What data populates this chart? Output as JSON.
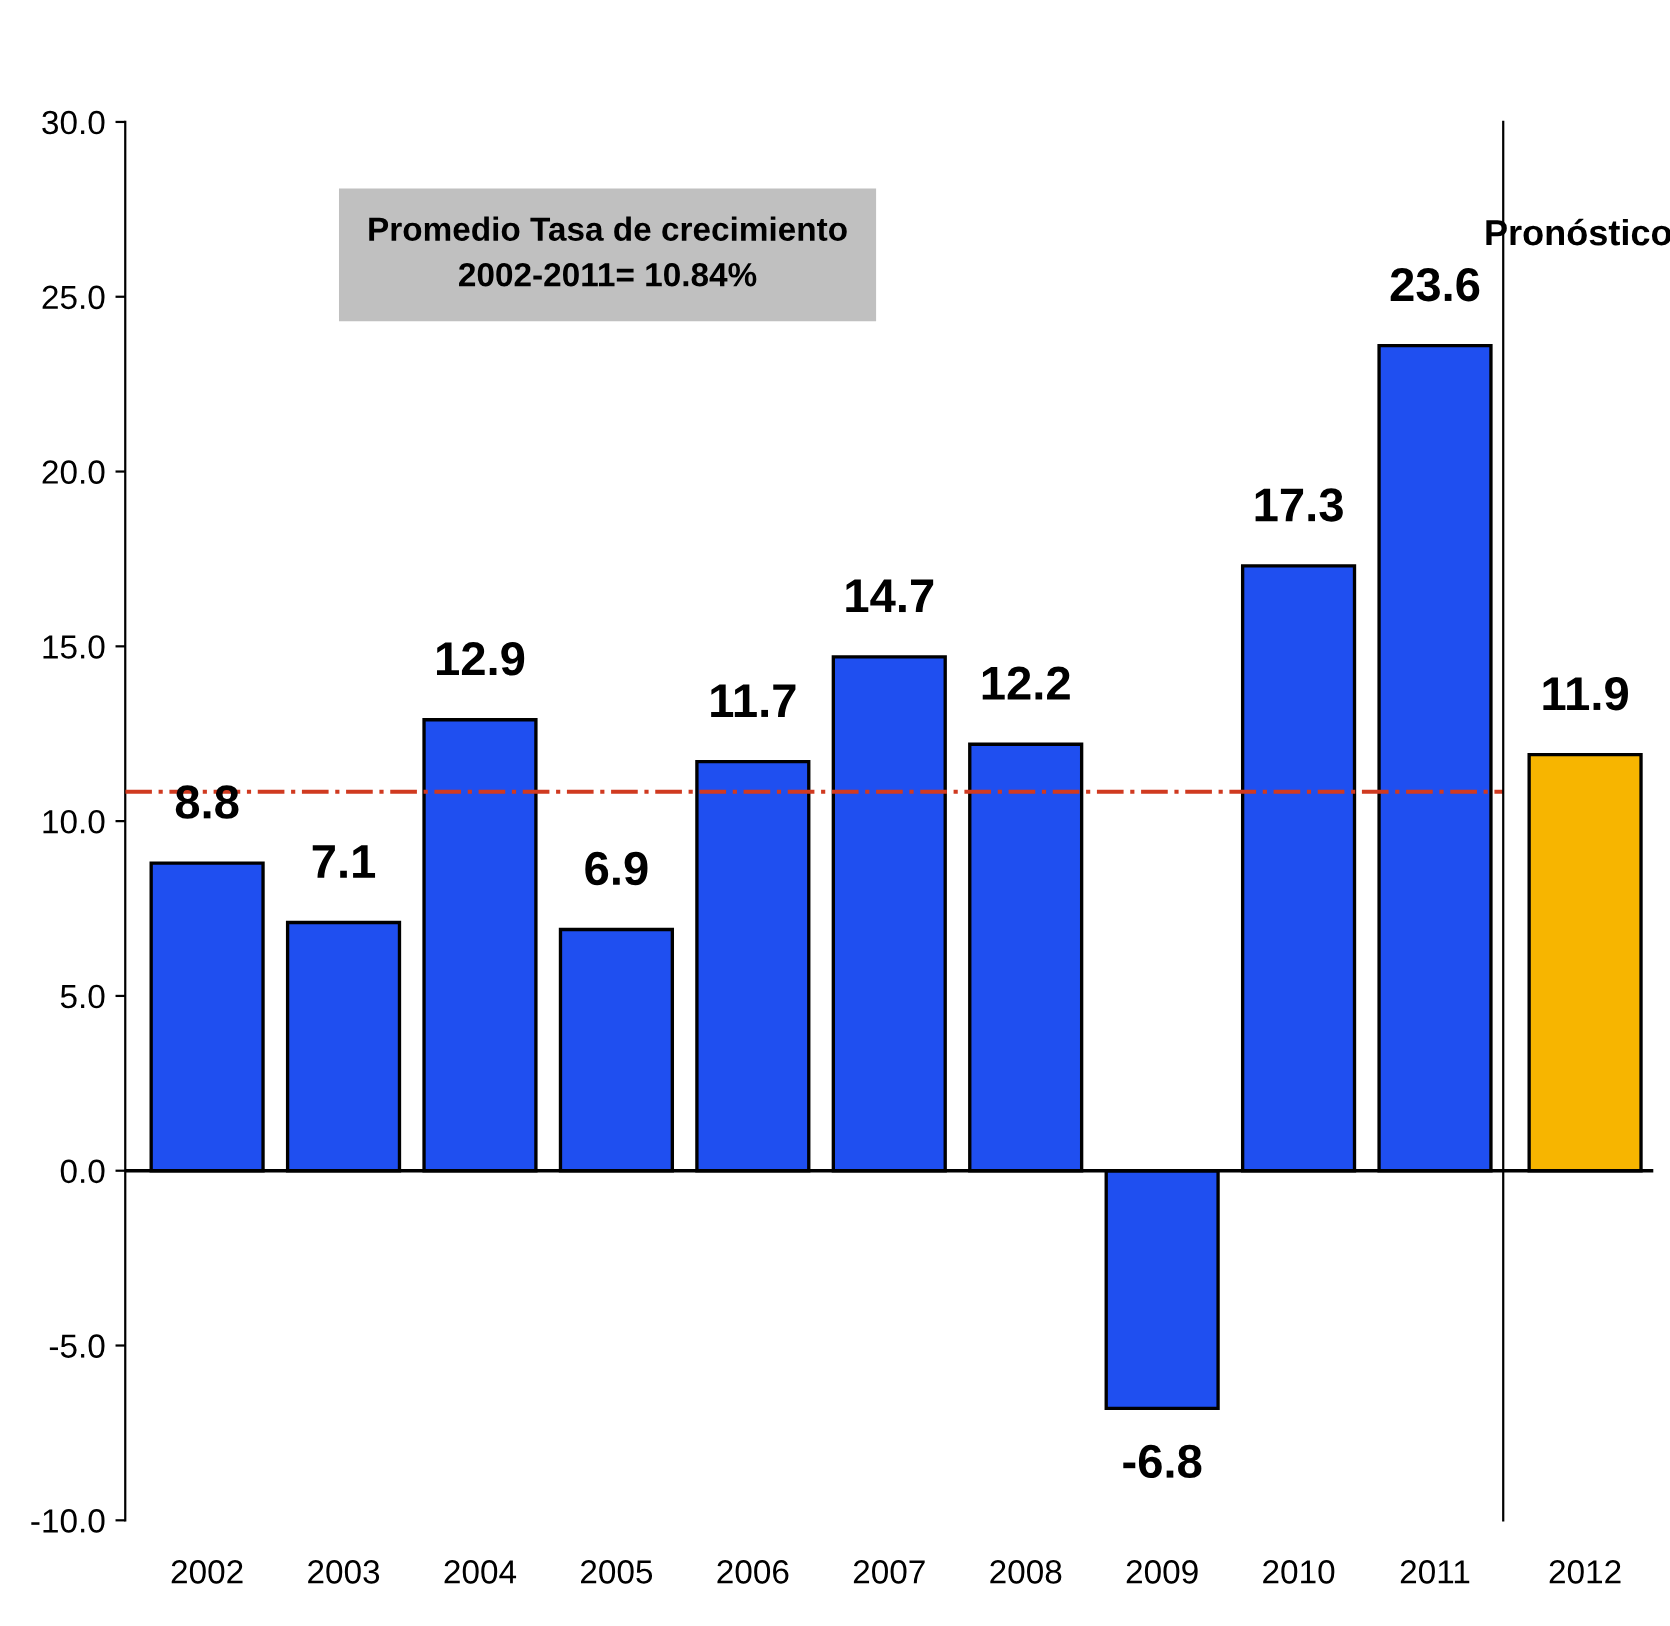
{
  "chart_data": [
    {
      "type": "bar",
      "categories": [
        "2002",
        "2003",
        "2004",
        "2005",
        "2006",
        "2007",
        "2008",
        "2009",
        "2010",
        "2011"
      ],
      "values": [
        8.8,
        7.1,
        12.9,
        6.9,
        11.7,
        14.7,
        12.2,
        -6.8,
        17.3,
        23.6
      ],
      "color": "#1f4ff0",
      "data_labels": true,
      "ylim": [
        -10,
        30
      ],
      "yticks": [
        {
          "value": -10,
          "label": "-10.0"
        },
        {
          "value": -5,
          "label": "-5.0"
        },
        {
          "value": 0,
          "label": "0.0"
        },
        {
          "value": 5,
          "label": "5.0"
        },
        {
          "value": 10,
          "label": "10.0"
        },
        {
          "value": 15,
          "label": "15.0"
        },
        {
          "value": 20,
          "label": "20.0"
        },
        {
          "value": 25,
          "label": "25.0"
        },
        {
          "value": 30,
          "label": "30.0"
        }
      ],
      "ref_lines": [
        {
          "axis": "y",
          "value": 10.84,
          "color": "#d03a20",
          "line_style": "dashdot"
        }
      ],
      "annotations": [
        "Promedio Tasa de crecimiento\n2002-2011= 10.84%"
      ]
    },
    {
      "type": "bar",
      "title": "Pronóstico",
      "categories": [
        "2012"
      ],
      "values": [
        11.9
      ],
      "color": "#f7b500",
      "data_labels": true,
      "ylim": [
        -10,
        30
      ],
      "tick_labels": "x"
    }
  ]
}
